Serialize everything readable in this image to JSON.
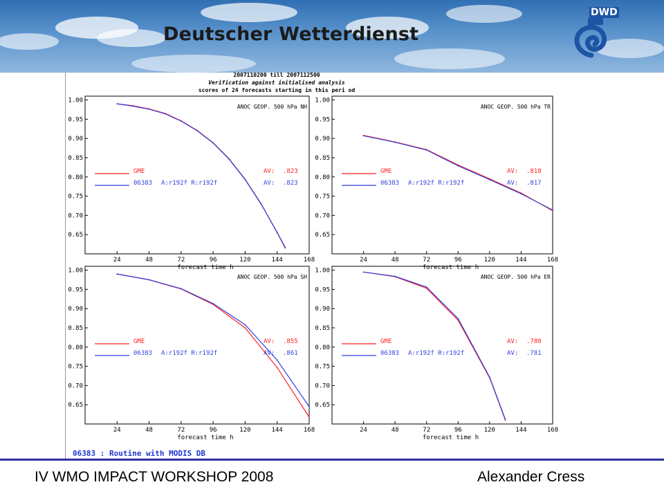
{
  "banner": {
    "title": "Deutscher Wetterdienst",
    "logo_text": "DWD",
    "logo_icon": "dwd-spiral-icon"
  },
  "header": {
    "period": "2007110200 till 2007112500",
    "line2": "Verification against initialised analysis",
    "line3": "scores of 24 forecasts starting in this peri od"
  },
  "colors": {
    "gme": "#ff2020",
    "exp": "#2f3fe0",
    "axis": "#000000"
  },
  "chart_data": [
    {
      "type": "line",
      "title": "ANOC GEOP. 500 hPa NH",
      "xlabel": "forecast time h",
      "x_ticks": [
        24,
        48,
        72,
        96,
        120,
        144,
        168
      ],
      "y_ticks": [
        "1.00",
        "0.95",
        "0.90",
        "0.85",
        "0.80",
        "0.75",
        "0.70",
        "0.65"
      ],
      "xlim": [
        0,
        168
      ],
      "ylim": [
        0.6,
        1.01
      ],
      "grid": false,
      "legend": "center-left",
      "series": [
        {
          "name": "GME",
          "label": "GME",
          "av_label": "AV:",
          "av": ".823",
          "x": [
            24,
            36,
            48,
            60,
            72,
            84,
            96,
            108,
            120,
            132,
            144,
            150
          ],
          "y": [
            0.99,
            0.985,
            0.977,
            0.965,
            0.946,
            0.921,
            0.889,
            0.847,
            0.794,
            0.73,
            0.655,
            0.615
          ]
        },
        {
          "name": "06383",
          "label": "06383",
          "run": "A:r192f R:r192f",
          "av_label": "AV:",
          "av": ".823",
          "x": [
            24,
            36,
            48,
            60,
            72,
            84,
            96,
            108,
            120,
            132,
            144,
            150
          ],
          "y": [
            0.99,
            0.984,
            0.976,
            0.964,
            0.945,
            0.92,
            0.888,
            0.846,
            0.793,
            0.729,
            0.656,
            0.617
          ]
        }
      ]
    },
    {
      "type": "line",
      "title": "ANOC GEOP. 500 hPa TR",
      "xlabel": "forecast time h",
      "x_ticks": [
        24,
        48,
        72,
        96,
        120,
        144,
        168
      ],
      "y_ticks": [
        "1.00",
        "0.95",
        "0.90",
        "0.85",
        "0.80",
        "0.75",
        "0.70",
        "0.65"
      ],
      "xlim": [
        0,
        168
      ],
      "ylim": [
        0.6,
        1.01
      ],
      "grid": false,
      "legend": "center-left",
      "series": [
        {
          "name": "GME",
          "label": "GME",
          "av_label": "AV:",
          "av": ".818",
          "x": [
            24,
            48,
            72,
            96,
            120,
            144,
            168
          ],
          "y": [
            0.908,
            0.891,
            0.871,
            0.831,
            0.795,
            0.758,
            0.712
          ]
        },
        {
          "name": "06383",
          "label": "06383",
          "run": "A:r192f R:r192f",
          "av_label": "AV:",
          "av": ".817",
          "x": [
            24,
            48,
            72,
            96,
            120,
            144,
            168
          ],
          "y": [
            0.907,
            0.89,
            0.87,
            0.829,
            0.793,
            0.756,
            0.714
          ]
        }
      ]
    },
    {
      "type": "line",
      "title": "ANOC GEOP. 500 hPa SH",
      "xlabel": "forecast time h",
      "x_ticks": [
        24,
        48,
        72,
        96,
        120,
        144,
        168
      ],
      "y_ticks": [
        "1.00",
        "0.95",
        "0.90",
        "0.85",
        "0.80",
        "0.75",
        "0.70",
        "0.65"
      ],
      "xlim": [
        0,
        168
      ],
      "ylim": [
        0.6,
        1.01
      ],
      "grid": false,
      "legend": "center-left",
      "series": [
        {
          "name": "GME",
          "label": "GME",
          "av_label": "AV:",
          "av": ".855",
          "x": [
            24,
            48,
            72,
            96,
            120,
            144,
            168
          ],
          "y": [
            0.99,
            0.975,
            0.951,
            0.911,
            0.85,
            0.747,
            0.618
          ]
        },
        {
          "name": "06383",
          "label": "06383",
          "run": "A:r192f R:r192f",
          "av_label": "AV:",
          "av": ".861",
          "x": [
            24,
            48,
            72,
            96,
            120,
            144,
            168
          ],
          "y": [
            0.99,
            0.975,
            0.952,
            0.913,
            0.858,
            0.766,
            0.645
          ]
        }
      ]
    },
    {
      "type": "line",
      "title": "ANOC GEOP. 500 hPa ER",
      "xlabel": "forecast time h",
      "x_ticks": [
        24,
        48,
        72,
        96,
        120,
        144,
        168
      ],
      "y_ticks": [
        "1.00",
        "0.95",
        "0.90",
        "0.85",
        "0.80",
        "0.75",
        "0.70",
        "0.65"
      ],
      "xlim": [
        0,
        168
      ],
      "ylim": [
        0.6,
        1.01
      ],
      "grid": false,
      "legend": "center-left",
      "series": [
        {
          "name": "GME",
          "label": "GME",
          "av_label": "AV:",
          "av": ".780",
          "x": [
            24,
            48,
            72,
            96,
            120,
            132
          ],
          "y": [
            0.995,
            0.983,
            0.953,
            0.87,
            0.72,
            0.61
          ]
        },
        {
          "name": "06383",
          "label": "06383",
          "run": "A:r192f R:r192f",
          "av_label": "AV:",
          "av": ".781",
          "x": [
            24,
            48,
            72,
            96,
            120,
            132
          ],
          "y": [
            0.995,
            0.984,
            0.956,
            0.874,
            0.722,
            0.612
          ]
        }
      ]
    }
  ],
  "note": "06383 :  Routine with MODIS DB",
  "footer": {
    "left": "IV WMO IMPACT WORKSHOP 2008",
    "right": "Alexander Cress"
  }
}
